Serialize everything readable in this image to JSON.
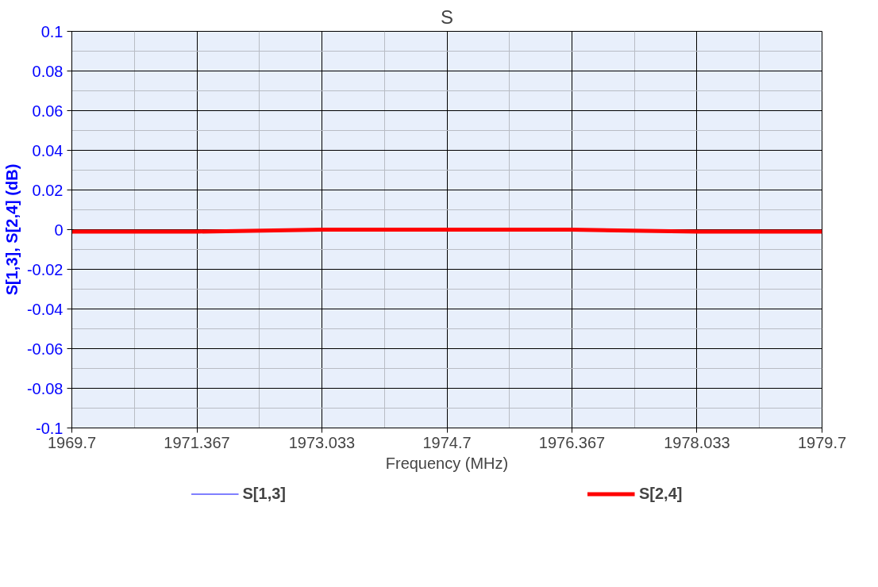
{
  "chart_data": {
    "type": "line",
    "title": "S",
    "xlabel": "Frequency (MHz)",
    "ylabel": "S[1,3], S[2,4] (dB)",
    "x": [
      1969.7,
      1971.367,
      1973.033,
      1974.7,
      1976.367,
      1978.033,
      1979.7
    ],
    "series": [
      {
        "name": "S[1,3]",
        "color": "#0000ff",
        "values": [
          null,
          null,
          null,
          null,
          null,
          null,
          null
        ]
      },
      {
        "name": "S[2,4]",
        "color": "#ff0000",
        "values": [
          -0.001,
          -0.001,
          0,
          0,
          0,
          -0.001,
          -0.001
        ]
      }
    ],
    "xlim": [
      1969.7,
      1979.7
    ],
    "xticks": [
      1969.7,
      1971.367,
      1973.033,
      1974.7,
      1976.367,
      1978.033,
      1979.7
    ],
    "ylim": [
      -0.1,
      0.1
    ],
    "yticks": [
      -0.1,
      -0.08,
      -0.06,
      -0.04,
      -0.02,
      0,
      0.02,
      0.04,
      0.06,
      0.08,
      0.1
    ],
    "grid": true,
    "legend": "bottom",
    "marker": "none",
    "line_style": "solid"
  }
}
